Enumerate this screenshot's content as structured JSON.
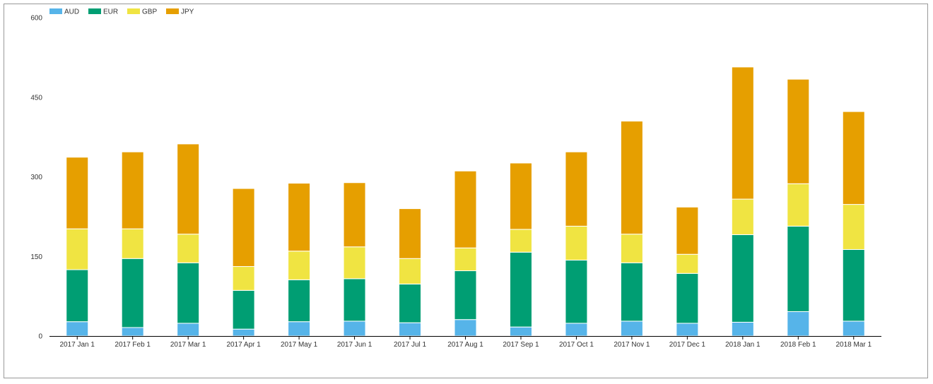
{
  "chart_data": {
    "type": "bar",
    "stacked": true,
    "categories": [
      "2017 Jan 1",
      "2017 Feb 1",
      "2017 Mar 1",
      "2017 Apr 1",
      "2017 May 1",
      "2017 Jun 1",
      "2017 Jul 1",
      "2017 Aug 1",
      "2017 Sep 1",
      "2017 Oct 1",
      "2017 Nov 1",
      "2017 Dec 1",
      "2018 Jan 1",
      "2018 Feb 1",
      "2018 Mar 1"
    ],
    "series": [
      {
        "name": "AUD",
        "color": "#56B4E9",
        "values": [
          27,
          16,
          24,
          13,
          27,
          28,
          25,
          31,
          17,
          24,
          28,
          24,
          26,
          46,
          28
        ]
      },
      {
        "name": "EUR",
        "color": "#009E73",
        "values": [
          98,
          130,
          114,
          73,
          79,
          80,
          73,
          92,
          141,
          119,
          110,
          94,
          165,
          161,
          135
        ]
      },
      {
        "name": "GBP",
        "color": "#F0E442",
        "values": [
          77,
          56,
          54,
          45,
          54,
          60,
          48,
          43,
          43,
          64,
          54,
          36,
          67,
          80,
          85
        ]
      },
      {
        "name": "JPY",
        "color": "#E69F00",
        "values": [
          135,
          145,
          170,
          147,
          128,
          121,
          94,
          145,
          125,
          140,
          213,
          89,
          249,
          197,
          175
        ]
      }
    ],
    "yticks": [
      "0",
      "150",
      "300",
      "450",
      "600"
    ],
    "ylim": [
      0,
      600
    ],
    "legend_position": "top-left",
    "grid": false,
    "title": "",
    "xlabel": "",
    "ylabel": ""
  }
}
